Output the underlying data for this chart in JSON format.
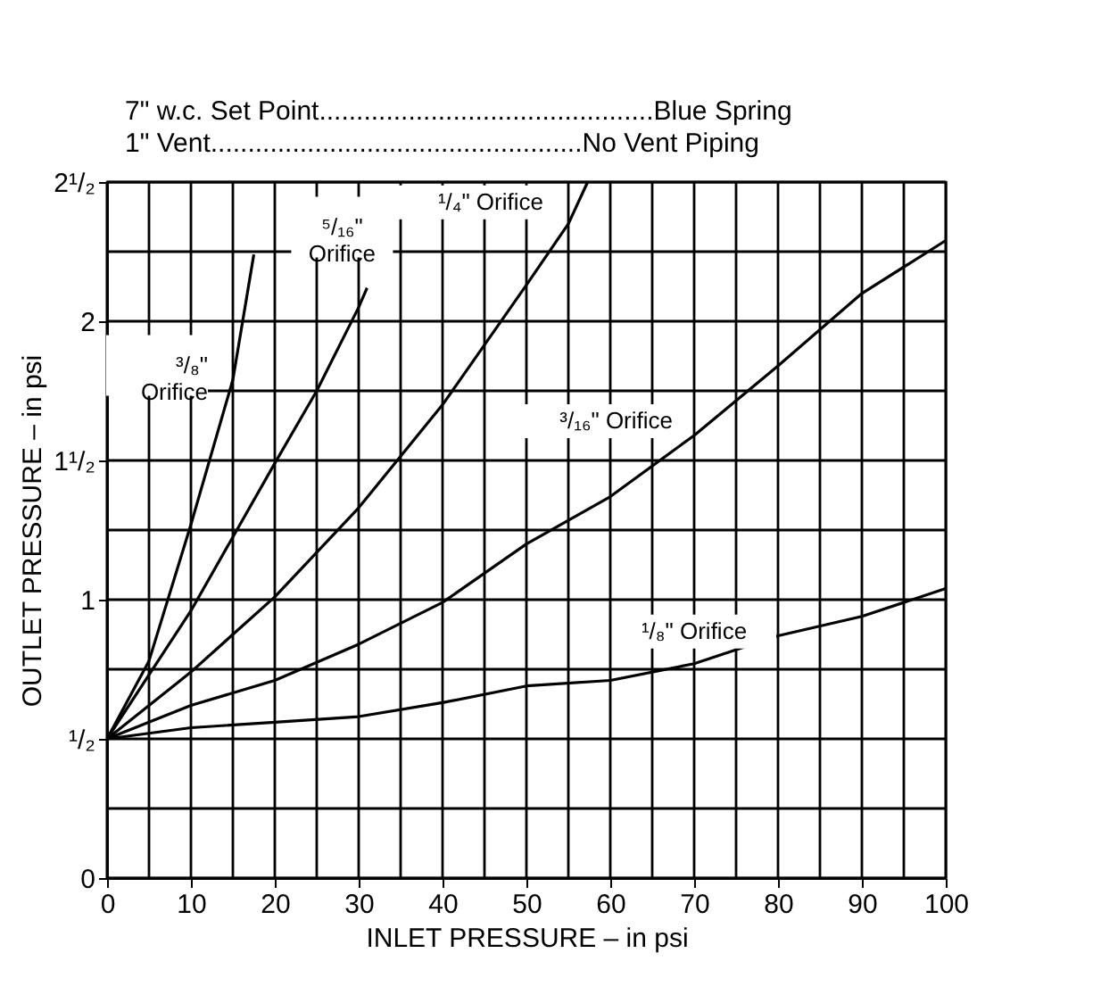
{
  "chart_data": {
    "type": "line",
    "xlabel": "INLET PRESSURE – in psi",
    "ylabel": "OUTLET PRESSURE – in psi",
    "xlim": [
      0,
      100
    ],
    "ylim": [
      0,
      2.5
    ],
    "xticks": [
      0,
      {
        "value": 5,
        "label": null
      },
      10,
      {
        "value": 15,
        "label": null
      },
      20,
      {
        "value": 25,
        "label": null
      },
      30,
      {
        "value": 35,
        "label": null
      },
      40,
      {
        "value": 45,
        "label": null
      },
      50,
      {
        "value": 55,
        "label": null
      },
      60,
      {
        "value": 65,
        "label": null
      },
      70,
      {
        "value": 75,
        "label": null
      },
      80,
      {
        "value": 85,
        "label": null
      },
      90,
      {
        "value": 95,
        "label": null
      },
      100
    ],
    "yticks": [
      0,
      {
        "value": 0.25,
        "label": null
      },
      {
        "value": 0.5,
        "label": "¹/₂"
      },
      {
        "value": 0.75,
        "label": null
      },
      1,
      {
        "value": 1.25,
        "label": null
      },
      {
        "value": 1.5,
        "label": "1¹/₂"
      },
      {
        "value": 1.75,
        "label": null
      },
      2,
      {
        "value": 2.25,
        "label": null
      },
      {
        "value": 2.5,
        "label": "2¹/₂"
      }
    ],
    "grid": true,
    "legend": false,
    "marker": "none",
    "line_style": "solid",
    "series": [
      {
        "name": "³/₈\"\nOrifice",
        "color": "#000000",
        "x": [
          0,
          5,
          10,
          15,
          17.5
        ],
        "values": [
          0.5,
          0.78,
          1.27,
          1.79,
          2.24
        ]
      },
      {
        "name": "⁵/₁₆\"\nOrifice",
        "color": "#000000",
        "x": [
          0,
          10,
          20,
          25,
          30,
          31
        ],
        "values": [
          0.5,
          0.96,
          1.49,
          1.75,
          2.05,
          2.12
        ]
      },
      {
        "name": "¹/₄\" Orifice",
        "color": "#000000",
        "x": [
          0,
          10,
          20,
          30,
          40,
          50,
          55,
          57.3
        ],
        "values": [
          0.5,
          0.74,
          1.01,
          1.33,
          1.7,
          2.13,
          2.35,
          2.5
        ]
      },
      {
        "name": "³/₁₆\" Orifice",
        "color": "#000000",
        "x": [
          0,
          10,
          20,
          30,
          40,
          50,
          60,
          70,
          80,
          90,
          100
        ],
        "values": [
          0.5,
          0.62,
          0.71,
          0.84,
          0.99,
          1.2,
          1.37,
          1.59,
          1.84,
          2.1,
          2.29
        ]
      },
      {
        "name": "¹/₈\" Orifice",
        "color": "#000000",
        "x": [
          0,
          10,
          20,
          30,
          40,
          50,
          60,
          70,
          80,
          90,
          100
        ],
        "values": [
          0.5,
          0.54,
          0.56,
          0.58,
          0.63,
          0.69,
          0.71,
          0.77,
          0.87,
          0.94,
          1.04
        ]
      }
    ],
    "annotations": [
      "7\" w.c. Set Point.............................................Blue Spring",
      "1\" Vent..................................................No Vent Piping"
    ]
  }
}
